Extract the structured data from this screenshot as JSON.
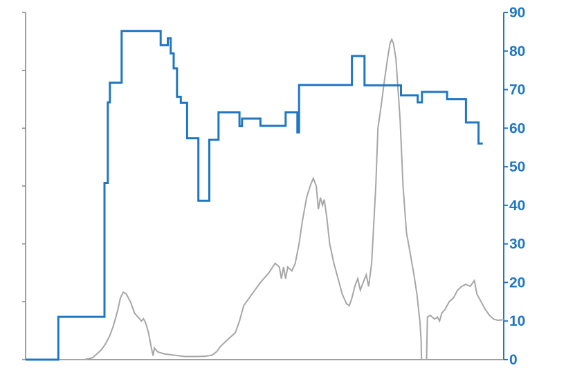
{
  "chart_data": {
    "type": "line",
    "title": "",
    "xlabel": "",
    "ylabel": "",
    "y_right": {
      "range": [
        0,
        90
      ],
      "ticks": [
        "0",
        "10",
        "20",
        "30",
        "40",
        "50",
        "60",
        "70",
        "80",
        "90"
      ],
      "color": "#1F77C4"
    },
    "y_left": {
      "range": [
        0,
        6
      ],
      "tick_count": 7,
      "labels_visible": false,
      "color": "#808080"
    },
    "grid": false,
    "legend": "none",
    "series": [
      {
        "axis": "right",
        "color": "#1F77C4",
        "step": true,
        "points": [
          [
            0,
            0
          ],
          [
            7.8,
            0
          ],
          [
            7.8,
            11.1
          ],
          [
            18.8,
            11.1
          ],
          [
            18.8,
            45.8
          ],
          [
            19.6,
            45.8
          ],
          [
            19.6,
            66.7
          ],
          [
            20.1,
            66.7
          ],
          [
            20.1,
            71.8
          ],
          [
            22.9,
            71.8
          ],
          [
            22.9,
            85.2
          ],
          [
            32.2,
            85.2
          ],
          [
            32.2,
            81.5
          ],
          [
            33.9,
            81.5
          ],
          [
            33.9,
            83.3
          ],
          [
            34.6,
            83.3
          ],
          [
            34.6,
            79.4
          ],
          [
            35.3,
            79.4
          ],
          [
            35.3,
            75.5
          ],
          [
            36.1,
            75.5
          ],
          [
            36.1,
            68.1
          ],
          [
            37.0,
            68.1
          ],
          [
            37.0,
            66.6
          ],
          [
            38.5,
            66.6
          ],
          [
            38.5,
            57.4
          ],
          [
            41.2,
            57.4
          ],
          [
            41.2,
            41.2
          ],
          [
            43.8,
            41.2
          ],
          [
            43.8,
            57.0
          ],
          [
            46.0,
            57.0
          ],
          [
            46.0,
            64.1
          ],
          [
            51.0,
            64.1
          ],
          [
            51.0,
            60.5
          ],
          [
            51.6,
            60.5
          ],
          [
            51.6,
            62.5
          ],
          [
            56.0,
            62.5
          ],
          [
            56.0,
            60.6
          ],
          [
            62.0,
            60.6
          ],
          [
            62.0,
            64.1
          ],
          [
            64.8,
            64.1
          ],
          [
            64.8,
            58.9
          ],
          [
            65.2,
            58.9
          ],
          [
            65.2,
            71.2
          ],
          [
            77.8,
            71.2
          ],
          [
            77.8,
            78.7
          ],
          [
            80.8,
            78.7
          ],
          [
            80.8,
            71.1
          ],
          [
            89.5,
            71.1
          ],
          [
            89.5,
            68.5
          ],
          [
            93.5,
            68.5
          ],
          [
            93.5,
            66.7
          ],
          [
            94.5,
            66.7
          ],
          [
            94.5,
            69.4
          ],
          [
            100.5,
            69.4
          ],
          [
            100.5,
            67.5
          ],
          [
            105.0,
            67.5
          ],
          [
            105.0,
            61.5
          ],
          [
            108.0,
            61.5
          ],
          [
            108.0,
            56.0
          ],
          [
            109.0,
            56.0
          ]
        ]
      },
      {
        "axis": "right",
        "color": "#A6A6A6",
        "step": false,
        "points": [
          [
            0,
            0
          ],
          [
            12,
            0
          ],
          [
            14,
            0
          ],
          [
            16,
            0.5
          ],
          [
            18,
            2.5
          ],
          [
            19,
            4
          ],
          [
            20,
            6
          ],
          [
            21,
            9
          ],
          [
            22,
            13
          ],
          [
            22.6,
            16
          ],
          [
            23.3,
            17.5
          ],
          [
            24.0,
            17
          ],
          [
            25.0,
            15
          ],
          [
            26.0,
            12
          ],
          [
            27.0,
            10.8
          ],
          [
            27.6,
            10.0
          ],
          [
            28.1,
            10.6
          ],
          [
            28.6,
            9.6
          ],
          [
            29.3,
            7
          ],
          [
            30.0,
            3
          ],
          [
            30.4,
            1
          ],
          [
            30.7,
            3
          ],
          [
            31.5,
            2
          ],
          [
            33,
            1.5
          ],
          [
            35,
            1.2
          ],
          [
            38,
            0.8
          ],
          [
            41,
            0.8
          ],
          [
            43,
            0.9
          ],
          [
            44.5,
            1.2
          ],
          [
            45.5,
            2
          ],
          [
            46.5,
            3.5
          ],
          [
            48,
            5
          ],
          [
            50,
            7
          ],
          [
            51,
            10
          ],
          [
            52,
            14
          ],
          [
            54,
            17
          ],
          [
            56,
            20
          ],
          [
            58,
            22.5
          ],
          [
            59.5,
            25
          ],
          [
            60.5,
            24
          ],
          [
            61.0,
            21
          ],
          [
            61.5,
            24
          ],
          [
            62.0,
            21
          ],
          [
            62.5,
            24
          ],
          [
            63.5,
            23
          ],
          [
            64.3,
            25
          ],
          [
            65.2,
            30
          ],
          [
            66.0,
            36
          ],
          [
            67.0,
            42
          ],
          [
            68.0,
            45.5
          ],
          [
            68.6,
            47
          ],
          [
            69.3,
            45
          ],
          [
            69.8,
            39
          ],
          [
            70.3,
            42
          ],
          [
            70.8,
            40
          ],
          [
            71.2,
            41.5
          ],
          [
            71.8,
            37
          ],
          [
            72.5,
            30
          ],
          [
            73.5,
            25
          ],
          [
            74.5,
            21
          ],
          [
            75.5,
            17
          ],
          [
            76.5,
            14.5
          ],
          [
            77.2,
            14
          ],
          [
            77.8,
            16
          ],
          [
            78.5,
            19
          ],
          [
            79.2,
            21
          ],
          [
            79.8,
            18
          ],
          [
            80.5,
            20
          ],
          [
            81.2,
            22
          ],
          [
            81.8,
            19
          ],
          [
            82.5,
            25
          ],
          [
            83.0,
            35
          ],
          [
            83.5,
            45
          ],
          [
            84.0,
            60
          ],
          [
            84.8,
            66
          ],
          [
            85.5,
            72
          ],
          [
            86.3,
            78
          ],
          [
            86.9,
            82
          ],
          [
            87.3,
            83
          ],
          [
            87.7,
            82
          ],
          [
            88.3,
            78
          ],
          [
            89.3,
            62
          ],
          [
            90.0,
            45
          ],
          [
            90.8,
            33
          ],
          [
            91.8,
            27
          ],
          [
            92.6,
            22
          ],
          [
            93.3,
            17
          ],
          [
            94.0,
            10
          ],
          [
            94.3,
            5
          ],
          [
            94.4,
            0
          ],
          [
            95.6,
            0
          ],
          [
            95.8,
            11
          ],
          [
            96.5,
            11.5
          ],
          [
            97.5,
            10.5
          ],
          [
            98.2,
            11
          ],
          [
            98.7,
            10
          ],
          [
            99.2,
            12
          ],
          [
            100.0,
            13
          ],
          [
            101.0,
            15
          ],
          [
            102.0,
            16
          ],
          [
            103.0,
            18
          ],
          [
            104.0,
            19
          ],
          [
            105.0,
            19.5
          ],
          [
            106.0,
            19
          ],
          [
            107.0,
            20.5
          ],
          [
            107.6,
            17
          ],
          [
            108.6,
            15
          ],
          [
            109.6,
            13
          ],
          [
            110.6,
            11.5
          ],
          [
            111.6,
            10.5
          ],
          [
            112.6,
            10.2
          ],
          [
            113.6,
            10.3
          ],
          [
            114.0,
            10.3
          ]
        ]
      }
    ]
  }
}
